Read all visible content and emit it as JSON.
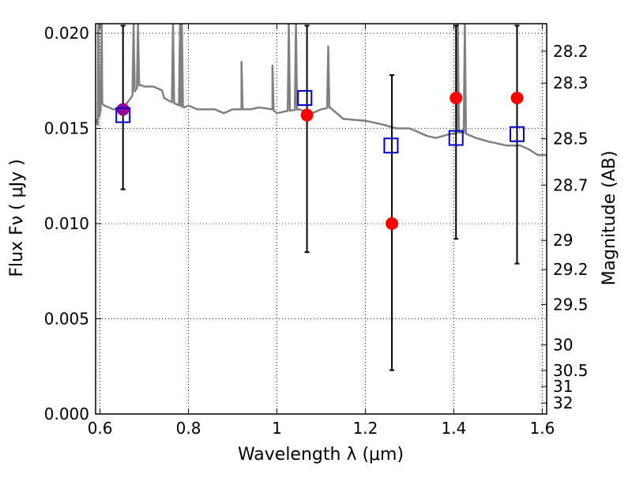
{
  "chart_data": {
    "type": "scatter",
    "xlabel": "Wavelength  λ (μm)",
    "ylabel": "Flux  Fν  ( μJy )",
    "y2label": "Magnitude (AB)",
    "xlim": [
      0.59,
      1.61
    ],
    "ylim": [
      0.0,
      0.0205
    ],
    "xticks": [
      {
        "value": 0.6,
        "label": "0.6"
      },
      {
        "value": 0.8,
        "label": "0.8"
      },
      {
        "value": 1.0,
        "label": "1"
      },
      {
        "value": 1.2,
        "label": "1.2"
      },
      {
        "value": 1.4,
        "label": "1.4"
      },
      {
        "value": 1.6,
        "label": "1.6"
      }
    ],
    "yticks": [
      {
        "value": 0.0,
        "label": "0.000"
      },
      {
        "value": 0.005,
        "label": "0.005"
      },
      {
        "value": 0.01,
        "label": "0.010"
      },
      {
        "value": 0.015,
        "label": "0.015"
      },
      {
        "value": 0.02,
        "label": "0.020"
      }
    ],
    "y2ticks": [
      {
        "value": 28.2,
        "label": "28.2"
      },
      {
        "value": 28.3,
        "label": "28.3"
      },
      {
        "value": 28.5,
        "label": "28.5"
      },
      {
        "value": 28.7,
        "label": "28.7"
      },
      {
        "value": 29.0,
        "label": "29"
      },
      {
        "value": 29.2,
        "label": "29.2"
      },
      {
        "value": 29.5,
        "label": "29.5"
      },
      {
        "value": 30.0,
        "label": "30"
      },
      {
        "value": 30.5,
        "label": "30.5"
      },
      {
        "value": 31.0,
        "label": "31"
      },
      {
        "value": 32.0,
        "label": "32"
      }
    ],
    "grid": true,
    "series": [
      {
        "kind": "spectrum-line",
        "color": "#808080",
        "points": [
          [
            0.59,
            0.0155
          ],
          [
            0.595,
            0.0152
          ],
          [
            0.6,
            0.0158
          ],
          [
            0.605,
            0.0163
          ],
          [
            0.61,
            0.0162
          ],
          [
            0.62,
            0.0161
          ],
          [
            0.63,
            0.016
          ],
          [
            0.64,
            0.016
          ],
          [
            0.65,
            0.0161
          ],
          [
            0.66,
            0.0163
          ],
          [
            0.67,
            0.0166
          ],
          [
            0.68,
            0.017
          ],
          [
            0.69,
            0.0173
          ],
          [
            0.7,
            0.0172
          ],
          [
            0.72,
            0.0172
          ],
          [
            0.74,
            0.017
          ],
          [
            0.745,
            0.0166
          ],
          [
            0.76,
            0.0164
          ],
          [
            0.77,
            0.0163
          ],
          [
            0.79,
            0.0161
          ],
          [
            0.8,
            0.0162
          ],
          [
            0.82,
            0.016
          ],
          [
            0.86,
            0.016
          ],
          [
            0.88,
            0.0158
          ],
          [
            0.9,
            0.016
          ],
          [
            0.92,
            0.016
          ],
          [
            0.94,
            0.016
          ],
          [
            0.96,
            0.0161
          ],
          [
            0.99,
            0.016
          ],
          [
            1.0,
            0.0158
          ],
          [
            1.02,
            0.0159
          ],
          [
            1.05,
            0.016
          ],
          [
            1.08,
            0.0158
          ],
          [
            1.1,
            0.016
          ],
          [
            1.12,
            0.0161
          ],
          [
            1.15,
            0.0155
          ],
          [
            1.2,
            0.0154
          ],
          [
            1.24,
            0.0152
          ],
          [
            1.27,
            0.015
          ],
          [
            1.3,
            0.015
          ],
          [
            1.32,
            0.0148
          ],
          [
            1.34,
            0.0146
          ],
          [
            1.36,
            0.0145
          ],
          [
            1.39,
            0.0147
          ],
          [
            1.42,
            0.0148
          ],
          [
            1.45,
            0.0145
          ],
          [
            1.48,
            0.0143
          ],
          [
            1.5,
            0.0142
          ],
          [
            1.52,
            0.0141
          ],
          [
            1.55,
            0.0141
          ],
          [
            1.57,
            0.0139
          ],
          [
            1.59,
            0.0136
          ],
          [
            1.61,
            0.0136
          ]
        ],
        "spikes": [
          [
            0.596,
            0.0205
          ],
          [
            0.604,
            0.0205
          ],
          [
            0.676,
            0.0205
          ],
          [
            0.686,
            0.0205
          ],
          [
            0.765,
            0.0205
          ],
          [
            0.781,
            0.0205
          ],
          [
            0.785,
            0.0205
          ],
          [
            0.92,
            0.0185
          ],
          [
            0.99,
            0.0183
          ],
          [
            1.027,
            0.0205
          ],
          [
            1.043,
            0.0205
          ],
          [
            1.116,
            0.0193
          ],
          [
            1.409,
            0.0205
          ],
          [
            1.425,
            0.0205
          ]
        ]
      },
      {
        "kind": "errorbar-points",
        "color": "#ff0000",
        "points": [
          {
            "x": 1.068,
            "y": 0.0157,
            "yerr_low": 0.0085,
            "yerr_high": 0.0204
          },
          {
            "x": 1.26,
            "y": 0.01,
            "yerr_low": 0.0023,
            "yerr_high": 0.0178
          },
          {
            "x": 1.405,
            "y": 0.0166,
            "yerr_low": 0.0092,
            "yerr_high": 0.0204
          },
          {
            "x": 1.543,
            "y": 0.0166,
            "yerr_low": 0.0079,
            "yerr_high": 0.0204
          }
        ]
      },
      {
        "kind": "errorbar-points",
        "color": "#990099",
        "points": [
          {
            "x": 0.652,
            "y": 0.016,
            "yerr_low": 0.0118,
            "yerr_high": 0.0204
          }
        ]
      },
      {
        "kind": "model-squares",
        "color": "#0000cc",
        "points": [
          {
            "x": 0.652,
            "y": 0.0157
          },
          {
            "x": 1.063,
            "y": 0.0166
          },
          {
            "x": 1.258,
            "y": 0.0141
          },
          {
            "x": 1.405,
            "y": 0.0145
          },
          {
            "x": 1.543,
            "y": 0.0147
          }
        ]
      }
    ]
  }
}
